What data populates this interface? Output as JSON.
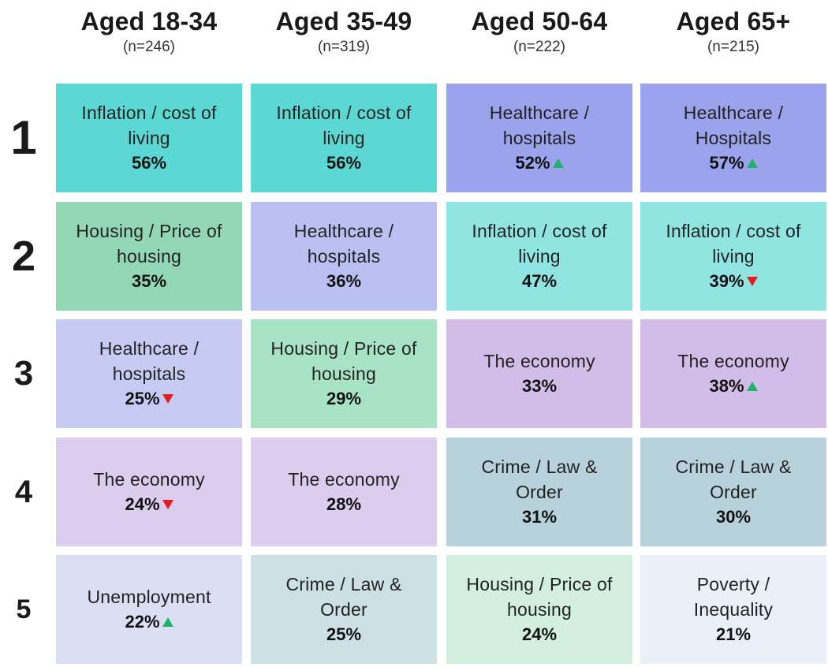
{
  "columns": [
    {
      "title": "Aged 18-34",
      "n": "(n=246)"
    },
    {
      "title": "Aged 35-49",
      "n": "(n=319)"
    },
    {
      "title": "Aged 50-64",
      "n": "(n=222)"
    },
    {
      "title": "Aged 65+",
      "n": "(n=215)"
    }
  ],
  "ranks": [
    "1",
    "2",
    "3",
    "4",
    "5"
  ],
  "colors": {
    "inflation_strong": "#5bd8d3",
    "inflation_light": "#90e5e2",
    "healthcare_strong": "#9aa3ec",
    "healthcare_light": "#bac0f1",
    "healthcare_lighter": "#c7cbf3",
    "housing_strong": "#92d8b5",
    "housing_mid": "#a9e3c6",
    "housing_light": "#d2efe0",
    "economy_strong": "#d1bde7",
    "economy_light": "#dcccee",
    "crime_strong": "#b7d2db",
    "crime_light": "#cce0e6",
    "unemployment": "#dcdef4",
    "poverty": "#eaf0fa",
    "arrow_up": "#1db36b",
    "arrow_down": "#e51d1d"
  },
  "chart_data": {
    "type": "table",
    "title": "",
    "columns": [
      "Aged 18-34",
      "Aged 35-49",
      "Aged 50-64",
      "Aged 65+"
    ],
    "sample_sizes": [
      "(n=246)",
      "(n=319)",
      "(n=222)",
      "(n=215)"
    ],
    "rows": [
      [
        {
          "label": "Inflation / cost of living",
          "value": "56%",
          "trend": "",
          "color": "inflation_strong"
        },
        {
          "label": "Inflation / cost of living",
          "value": "56%",
          "trend": "",
          "color": "inflation_strong"
        },
        {
          "label": "Healthcare / hospitals",
          "value": "52%",
          "trend": "up",
          "color": "healthcare_strong"
        },
        {
          "label": "Healthcare / Hospitals",
          "value": "57%",
          "trend": "up",
          "color": "healthcare_strong"
        }
      ],
      [
        {
          "label": "Housing / Price of housing",
          "value": "35%",
          "trend": "",
          "color": "housing_strong"
        },
        {
          "label": "Healthcare / hospitals",
          "value": "36%",
          "trend": "",
          "color": "healthcare_light"
        },
        {
          "label": "Inflation / cost of living",
          "value": "47%",
          "trend": "",
          "color": "inflation_light"
        },
        {
          "label": "Inflation / cost of living",
          "value": "39%",
          "trend": "down",
          "color": "inflation_light"
        }
      ],
      [
        {
          "label": "Healthcare / hospitals",
          "value": "25%",
          "trend": "down",
          "color": "healthcare_lighter"
        },
        {
          "label": "Housing / Price of housing",
          "value": "29%",
          "trend": "",
          "color": "housing_mid"
        },
        {
          "label": "The economy",
          "value": "33%",
          "trend": "",
          "color": "economy_strong"
        },
        {
          "label": "The economy",
          "value": "38%",
          "trend": "up",
          "color": "economy_strong"
        }
      ],
      [
        {
          "label": "The economy",
          "value": "24%",
          "trend": "down",
          "color": "economy_light"
        },
        {
          "label": "The economy",
          "value": "28%",
          "trend": "",
          "color": "economy_light"
        },
        {
          "label": "Crime / Law & Order",
          "value": "31%",
          "trend": "",
          "color": "crime_strong"
        },
        {
          "label": "Crime / Law & Order",
          "value": "30%",
          "trend": "",
          "color": "crime_strong"
        }
      ],
      [
        {
          "label": "Unemployment",
          "value": "22%",
          "trend": "up",
          "color": "unemployment"
        },
        {
          "label": "Crime / Law & Order",
          "value": "25%",
          "trend": "",
          "color": "crime_light"
        },
        {
          "label": "Housing / Price of housing",
          "value": "24%",
          "trend": "",
          "color": "housing_light"
        },
        {
          "label": "Poverty / Inequality",
          "value": "21%",
          "trend": "",
          "color": "poverty"
        }
      ]
    ]
  }
}
